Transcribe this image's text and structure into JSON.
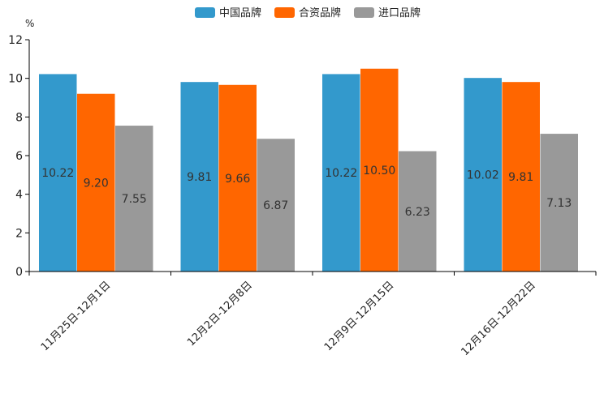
{
  "chart_data": {
    "type": "bar",
    "title": "",
    "xlabel": "",
    "ylabel": "%",
    "ylim": [
      0,
      12
    ],
    "yticks": [
      0,
      2,
      4,
      6,
      8,
      10,
      12
    ],
    "grid": false,
    "legend_position": "top-center",
    "categories": [
      "11月25日-12月1日",
      "12月2日-12月8日",
      "12月9日-12月15日",
      "12月16日-12月22日"
    ],
    "series": [
      {
        "name": "中国品牌",
        "color": "#3399cc",
        "values": [
          10.22,
          9.81,
          10.22,
          10.02
        ],
        "labels": [
          "10.22",
          "9.81",
          "10.22",
          "10.02"
        ]
      },
      {
        "name": "合资品牌",
        "color": "#ff6600",
        "values": [
          9.2,
          9.66,
          10.5,
          9.81
        ],
        "labels": [
          "9.20",
          "9.66",
          "10.50",
          "9.81"
        ]
      },
      {
        "name": "进口品牌",
        "color": "#999999",
        "values": [
          7.55,
          6.87,
          6.23,
          7.13
        ],
        "labels": [
          "7.55",
          "6.87",
          "6.23",
          "7.13"
        ]
      }
    ]
  }
}
